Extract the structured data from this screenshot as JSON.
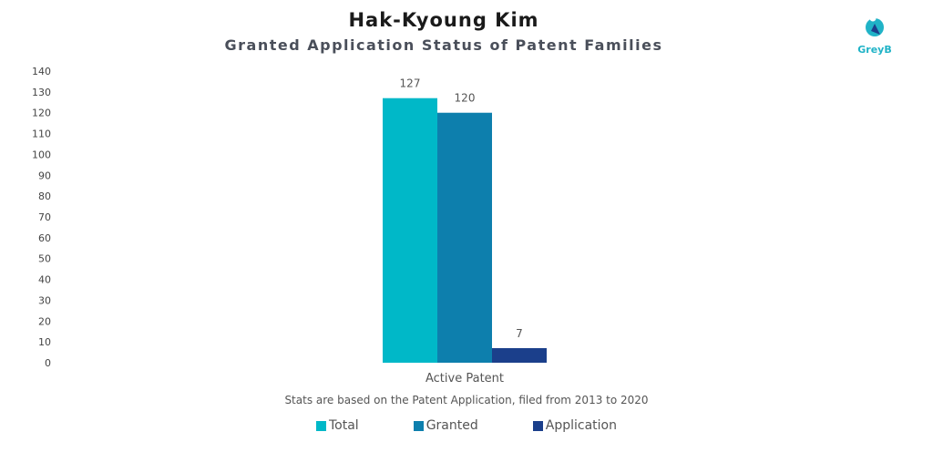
{
  "title": "Hak-Kyoung Kim",
  "subtitle": "Granted Application Status of Patent Families",
  "logo_text": "GreyB",
  "footnote": "Stats are based on the Patent Application, filed from 2013 to 2020",
  "chart_data": {
    "type": "bar",
    "categories": [
      "Active Patent"
    ],
    "series": [
      {
        "name": "Total",
        "values": [
          127
        ],
        "color": "#00b8c8"
      },
      {
        "name": "Granted",
        "values": [
          120
        ],
        "color": "#0d7fad"
      },
      {
        "name": "Application",
        "values": [
          7
        ],
        "color": "#1b3f8b"
      }
    ],
    "ylim": [
      0,
      140
    ],
    "yticks": [
      0,
      10,
      20,
      30,
      40,
      50,
      60,
      70,
      80,
      90,
      100,
      110,
      120,
      130,
      140
    ],
    "grid": false,
    "legend": "bottom-center"
  },
  "colors": {
    "logo": "#20b3c7",
    "text": "#555555"
  },
  "icons": {
    "logo": "greyb-logo-icon"
  }
}
